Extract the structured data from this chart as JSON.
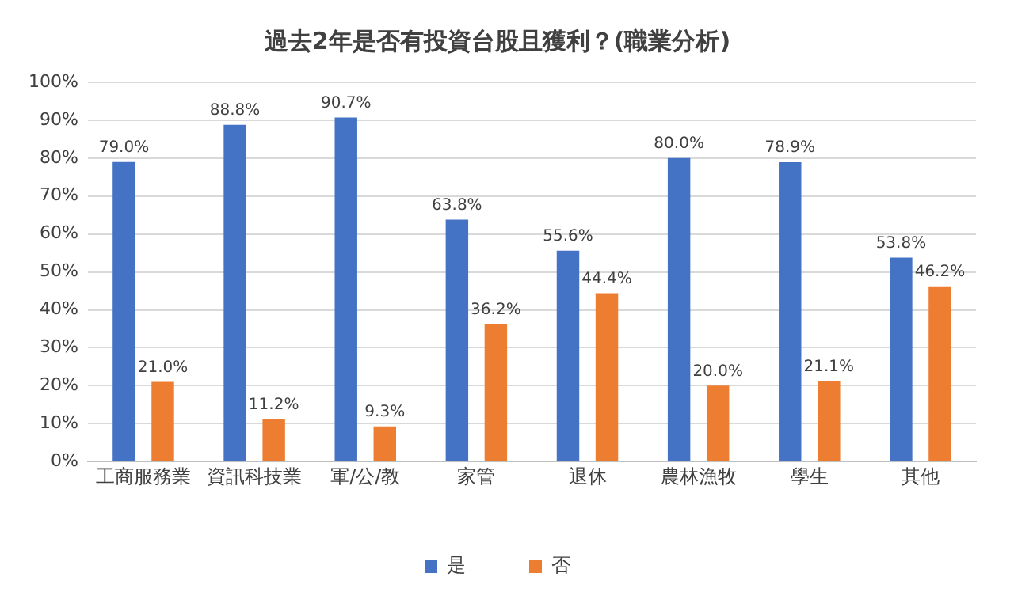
{
  "chart_data": {
    "type": "bar",
    "title": "過去2年是否有投資台股且獲利？(職業分析)",
    "categories": [
      "工商服務業",
      "資訊科技業",
      "軍/公/教",
      "家管",
      "退休",
      "農林漁牧",
      "學生",
      "其他"
    ],
    "series": [
      {
        "name": "是",
        "color": "#4472c4",
        "values": [
          79.0,
          88.8,
          90.7,
          63.8,
          55.6,
          80.0,
          78.9,
          53.8
        ],
        "value_labels": [
          "79.0%",
          "88.8%",
          "90.7%",
          "63.8%",
          "55.6%",
          "80.0%",
          "78.9%",
          "53.8%"
        ]
      },
      {
        "name": "否",
        "color": "#ed7d31",
        "values": [
          21.0,
          11.2,
          9.3,
          36.2,
          44.4,
          20.0,
          21.1,
          46.2
        ],
        "value_labels": [
          "21.0%",
          "11.2%",
          "9.3%",
          "36.2%",
          "44.4%",
          "20.0%",
          "21.1%",
          "46.2%"
        ]
      }
    ],
    "ylim": [
      0,
      100
    ],
    "yticks": [
      {
        "value": 0,
        "label": "0%"
      },
      {
        "value": 10,
        "label": "10%"
      },
      {
        "value": 20,
        "label": "20%"
      },
      {
        "value": 30,
        "label": "30%"
      },
      {
        "value": 40,
        "label": "40%"
      },
      {
        "value": 50,
        "label": "50%"
      },
      {
        "value": 60,
        "label": "60%"
      },
      {
        "value": 70,
        "label": "70%"
      },
      {
        "value": 80,
        "label": "80%"
      },
      {
        "value": 90,
        "label": "90%"
      },
      {
        "value": 100,
        "label": "100%"
      }
    ],
    "grid": "y",
    "legend": "bottom"
  }
}
